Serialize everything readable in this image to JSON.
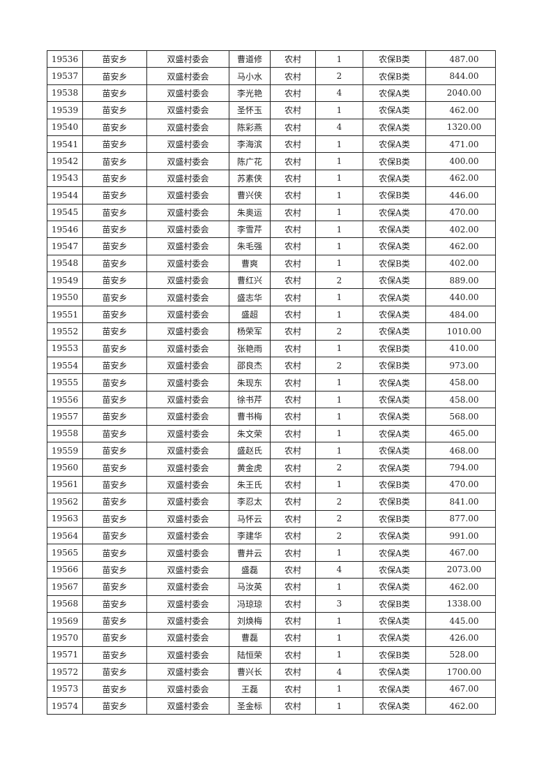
{
  "table": {
    "rows": [
      [
        "19536",
        "苗安乡",
        "双盛村委会",
        "曹道修",
        "农村",
        "1",
        "农保B类",
        "487.00"
      ],
      [
        "19537",
        "苗安乡",
        "双盛村委会",
        "马小水",
        "农村",
        "2",
        "农保B类",
        "844.00"
      ],
      [
        "19538",
        "苗安乡",
        "双盛村委会",
        "李光艳",
        "农村",
        "4",
        "农保A类",
        "2040.00"
      ],
      [
        "19539",
        "苗安乡",
        "双盛村委会",
        "圣怀玉",
        "农村",
        "1",
        "农保A类",
        "462.00"
      ],
      [
        "19540",
        "苗安乡",
        "双盛村委会",
        "陈彩燕",
        "农村",
        "4",
        "农保A类",
        "1320.00"
      ],
      [
        "19541",
        "苗安乡",
        "双盛村委会",
        "李海滨",
        "农村",
        "1",
        "农保A类",
        "471.00"
      ],
      [
        "19542",
        "苗安乡",
        "双盛村委会",
        "陈广花",
        "农村",
        "1",
        "农保B类",
        "400.00"
      ],
      [
        "19543",
        "苗安乡",
        "双盛村委会",
        "苏素侠",
        "农村",
        "1",
        "农保A类",
        "462.00"
      ],
      [
        "19544",
        "苗安乡",
        "双盛村委会",
        "曹兴侠",
        "农村",
        "1",
        "农保B类",
        "446.00"
      ],
      [
        "19545",
        "苗安乡",
        "双盛村委会",
        "朱奥运",
        "农村",
        "1",
        "农保A类",
        "470.00"
      ],
      [
        "19546",
        "苗安乡",
        "双盛村委会",
        "李雪芹",
        "农村",
        "1",
        "农保A类",
        "402.00"
      ],
      [
        "19547",
        "苗安乡",
        "双盛村委会",
        "朱毛强",
        "农村",
        "1",
        "农保A类",
        "462.00"
      ],
      [
        "19548",
        "苗安乡",
        "双盛村委会",
        "曹爽",
        "农村",
        "1",
        "农保B类",
        "402.00"
      ],
      [
        "19549",
        "苗安乡",
        "双盛村委会",
        "曹红兴",
        "农村",
        "2",
        "农保A类",
        "889.00"
      ],
      [
        "19550",
        "苗安乡",
        "双盛村委会",
        "盛志华",
        "农村",
        "1",
        "农保A类",
        "440.00"
      ],
      [
        "19551",
        "苗安乡",
        "双盛村委会",
        "盛超",
        "农村",
        "1",
        "农保A类",
        "484.00"
      ],
      [
        "19552",
        "苗安乡",
        "双盛村委会",
        "杨荣军",
        "农村",
        "2",
        "农保A类",
        "1010.00"
      ],
      [
        "19553",
        "苗安乡",
        "双盛村委会",
        "张艳雨",
        "农村",
        "1",
        "农保B类",
        "410.00"
      ],
      [
        "19554",
        "苗安乡",
        "双盛村委会",
        "邵良杰",
        "农村",
        "2",
        "农保B类",
        "973.00"
      ],
      [
        "19555",
        "苗安乡",
        "双盛村委会",
        "朱现东",
        "农村",
        "1",
        "农保A类",
        "458.00"
      ],
      [
        "19556",
        "苗安乡",
        "双盛村委会",
        "徐书芹",
        "农村",
        "1",
        "农保A类",
        "458.00"
      ],
      [
        "19557",
        "苗安乡",
        "双盛村委会",
        "曹书梅",
        "农村",
        "1",
        "农保A类",
        "568.00"
      ],
      [
        "19558",
        "苗安乡",
        "双盛村委会",
        "朱文荣",
        "农村",
        "1",
        "农保A类",
        "465.00"
      ],
      [
        "19559",
        "苗安乡",
        "双盛村委会",
        "盛赵氏",
        "农村",
        "1",
        "农保A类",
        "468.00"
      ],
      [
        "19560",
        "苗安乡",
        "双盛村委会",
        "黄金虎",
        "农村",
        "2",
        "农保A类",
        "794.00"
      ],
      [
        "19561",
        "苗安乡",
        "双盛村委会",
        "朱王氏",
        "农村",
        "1",
        "农保B类",
        "470.00"
      ],
      [
        "19562",
        "苗安乡",
        "双盛村委会",
        "李忍太",
        "农村",
        "2",
        "农保B类",
        "841.00"
      ],
      [
        "19563",
        "苗安乡",
        "双盛村委会",
        "马怀云",
        "农村",
        "2",
        "农保B类",
        "877.00"
      ],
      [
        "19564",
        "苗安乡",
        "双盛村委会",
        "李建华",
        "农村",
        "2",
        "农保A类",
        "991.00"
      ],
      [
        "19565",
        "苗安乡",
        "双盛村委会",
        "曹井云",
        "农村",
        "1",
        "农保A类",
        "467.00"
      ],
      [
        "19566",
        "苗安乡",
        "双盛村委会",
        "盛磊",
        "农村",
        "4",
        "农保A类",
        "2073.00"
      ],
      [
        "19567",
        "苗安乡",
        "双盛村委会",
        "马汝英",
        "农村",
        "1",
        "农保A类",
        "462.00"
      ],
      [
        "19568",
        "苗安乡",
        "双盛村委会",
        "冯琼琼",
        "农村",
        "3",
        "农保B类",
        "1338.00"
      ],
      [
        "19569",
        "苗安乡",
        "双盛村委会",
        "刘焕梅",
        "农村",
        "1",
        "农保A类",
        "445.00"
      ],
      [
        "19570",
        "苗安乡",
        "双盛村委会",
        "曹磊",
        "农村",
        "1",
        "农保A类",
        "426.00"
      ],
      [
        "19571",
        "苗安乡",
        "双盛村委会",
        "陆恒荣",
        "农村",
        "1",
        "农保B类",
        "528.00"
      ],
      [
        "19572",
        "苗安乡",
        "双盛村委会",
        "曹兴长",
        "农村",
        "4",
        "农保A类",
        "1700.00"
      ],
      [
        "19573",
        "苗安乡",
        "双盛村委会",
        "王磊",
        "农村",
        "1",
        "农保A类",
        "467.00"
      ],
      [
        "19574",
        "苗安乡",
        "双盛村委会",
        "圣金标",
        "农村",
        "1",
        "农保A类",
        "462.00"
      ]
    ]
  }
}
